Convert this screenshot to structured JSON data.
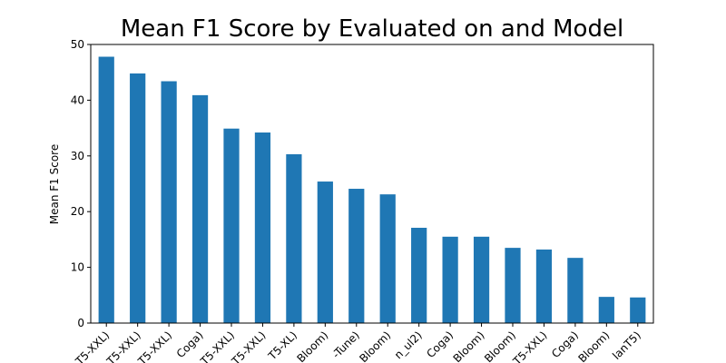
{
  "chart_data": {
    "type": "bar",
    "title": "Mean F1 Score by Evaluated on and Model",
    "xlabel": "",
    "ylabel": "Mean F1 Score",
    "ylim": [
      0,
      50
    ],
    "yticks": [
      0,
      10,
      20,
      30,
      40,
      50
    ],
    "grid": false,
    "bar_color": "#1f77b4",
    "categories": [
      "T5-XXL)",
      "T5-XXL)",
      "T5-XXL)",
      "Coga)",
      "T5-XXL)",
      "T5-XXL)",
      "T5-XL)",
      "Bloom)",
      "-Tune)",
      "Bloom)",
      "n_ul2)",
      "Coga)",
      "Bloom)",
      "Bloom)",
      "T5-XXL)",
      "Coga)",
      "Bloom)",
      "lanT5)"
    ],
    "values": [
      47.8,
      44.8,
      43.4,
      40.9,
      34.9,
      34.2,
      30.3,
      25.4,
      24.1,
      23.1,
      17.1,
      15.5,
      15.5,
      13.5,
      13.2,
      11.7,
      4.7,
      4.6
    ]
  }
}
